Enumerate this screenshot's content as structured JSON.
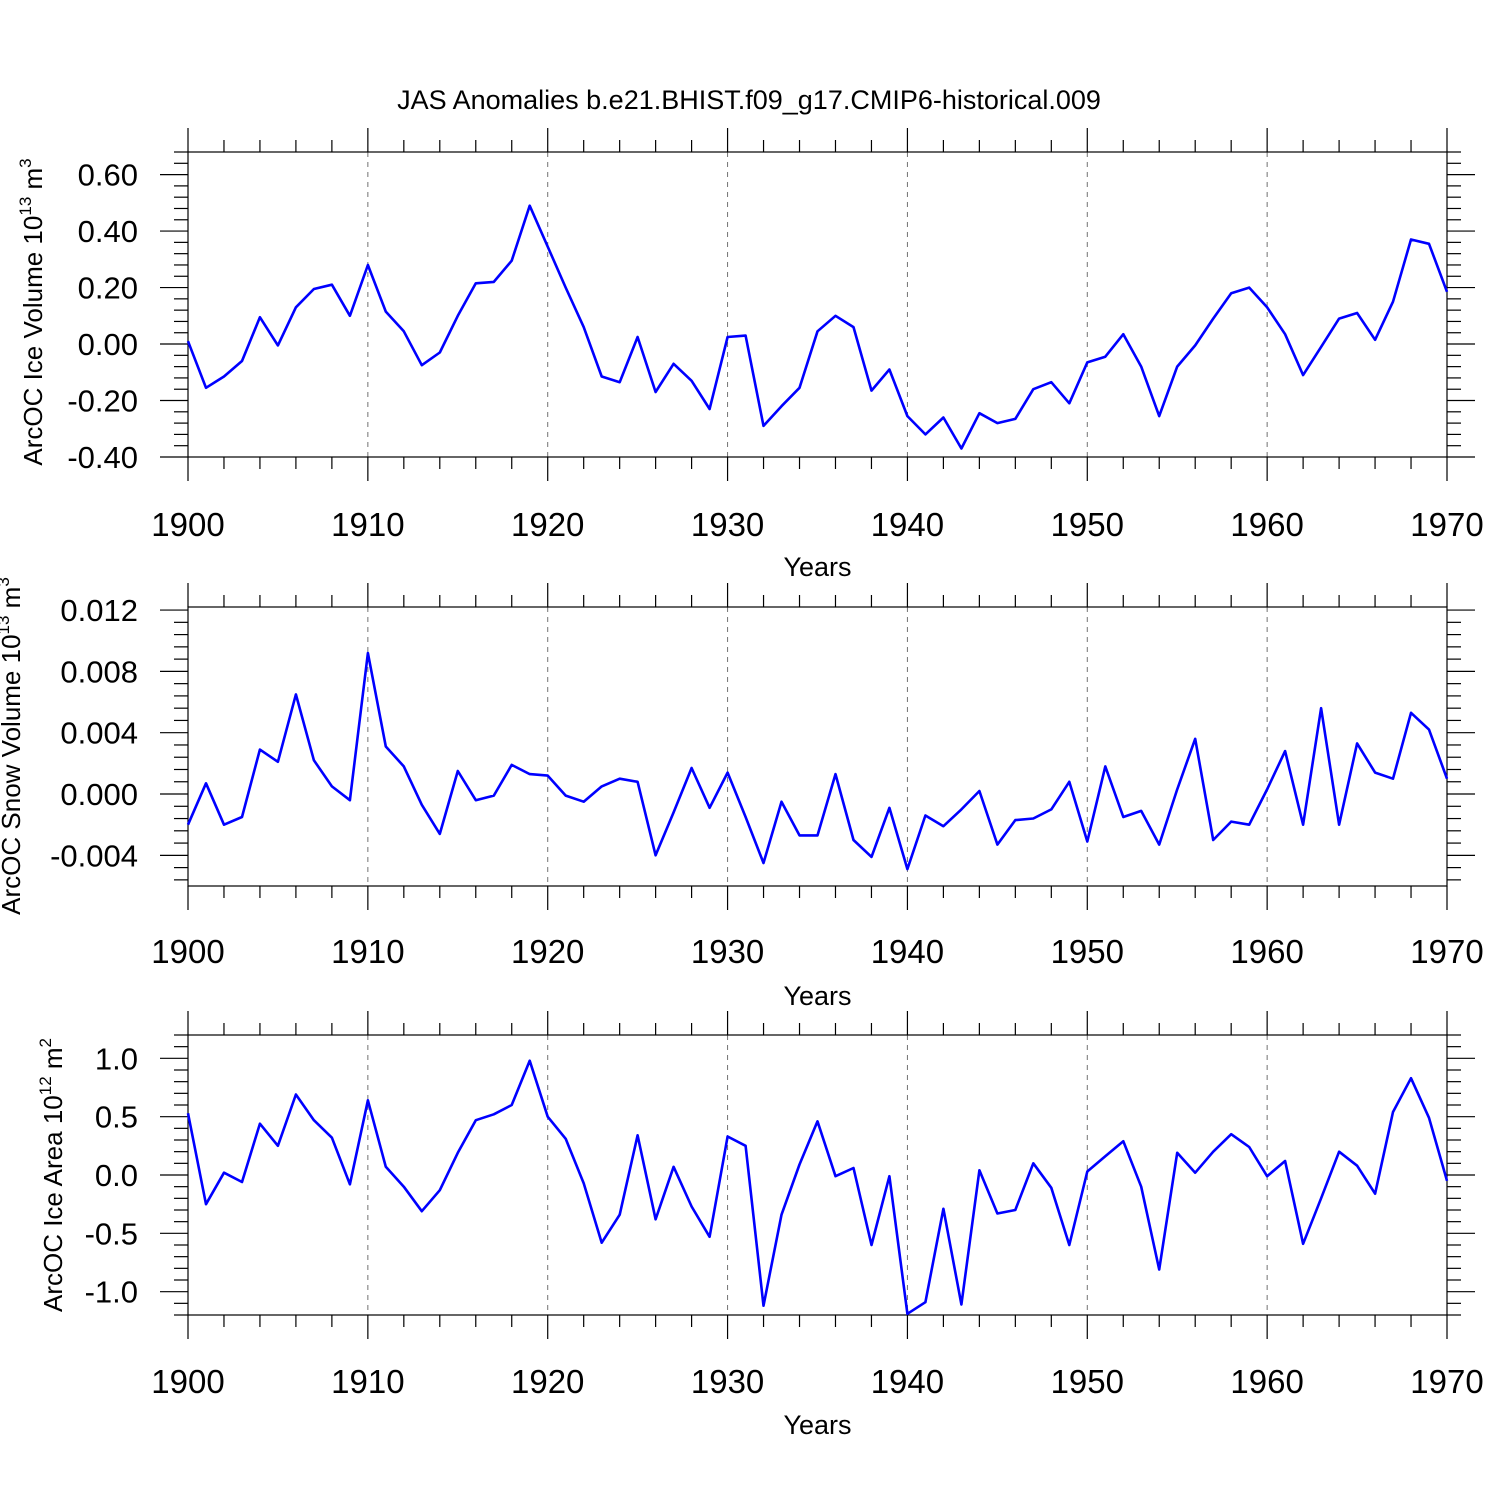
{
  "chart_data": [
    {
      "type": "line",
      "title": "JAS Anomalies b.e21.BHIST.f09_g17.CMIP6-historical.009",
      "ylabel": {
        "main": "ArcOC Ice Volume 10",
        "exp": "13",
        "mid": " m",
        "unit_exp": "3"
      },
      "xlabel": "Years",
      "xlim": [
        1900,
        1970
      ],
      "ylim": [
        -0.4,
        0.68
      ],
      "yticks": [
        -0.4,
        -0.2,
        0.0,
        0.2,
        0.4,
        0.6
      ],
      "ytick_labels": [
        "-0.40",
        "-0.20",
        "0.00",
        "0.20",
        "0.40",
        "0.60"
      ],
      "xticks": [
        1900,
        1910,
        1920,
        1930,
        1940,
        1950,
        1960,
        1970
      ],
      "xtick_labels": [
        "1900",
        "1910",
        "1920",
        "1930",
        "1940",
        "1950",
        "1960",
        "1970"
      ],
      "grid": "dashed vertical at decades",
      "color": "#0000ff",
      "x_start": 1900,
      "values": [
        0.01,
        -0.155,
        -0.115,
        -0.06,
        0.095,
        -0.005,
        0.13,
        0.195,
        0.21,
        0.1,
        0.28,
        0.115,
        0.045,
        -0.075,
        -0.03,
        0.1,
        0.215,
        0.22,
        0.295,
        0.49,
        0.345,
        0.2,
        0.06,
        -0.115,
        -0.135,
        0.025,
        -0.17,
        -0.07,
        -0.13,
        -0.23,
        0.025,
        0.03,
        -0.29,
        -0.22,
        -0.155,
        0.045,
        0.1,
        0.06,
        -0.165,
        -0.09,
        -0.255,
        -0.32,
        -0.26,
        -0.37,
        -0.245,
        -0.28,
        -0.265,
        -0.16,
        -0.135,
        -0.21,
        -0.065,
        -0.045,
        0.035,
        -0.08,
        -0.255,
        -0.08,
        -0.005,
        0.09,
        0.18,
        0.2,
        0.13,
        0.035,
        -0.11,
        -0.01,
        0.09,
        0.11,
        0.015,
        0.15,
        0.37,
        0.355,
        0.185
      ]
    },
    {
      "type": "line",
      "title": "",
      "ylabel": {
        "main": "ArcOC Snow Volume 10",
        "exp": "13",
        "mid": " m",
        "unit_exp": "3"
      },
      "xlabel": "Years",
      "xlim": [
        1900,
        1970
      ],
      "ylim": [
        -0.006,
        0.0122
      ],
      "yticks": [
        -0.004,
        0.0,
        0.004,
        0.008,
        0.012
      ],
      "ytick_labels": [
        "-0.004",
        "0.000",
        "0.004",
        "0.008",
        "0.012"
      ],
      "xticks": [
        1900,
        1910,
        1920,
        1930,
        1940,
        1950,
        1960,
        1970
      ],
      "xtick_labels": [
        "1900",
        "1910",
        "1920",
        "1930",
        "1940",
        "1950",
        "1960",
        "1970"
      ],
      "grid": "dashed vertical at decades",
      "color": "#0000ff",
      "x_start": 1900,
      "values": [
        -0.002,
        0.0007,
        -0.002,
        -0.0015,
        0.0029,
        0.0021,
        0.0065,
        0.0022,
        0.0005,
        -0.0004,
        0.0092,
        0.0031,
        0.0018,
        -0.0007,
        -0.0026,
        0.0015,
        -0.0004,
        -0.0001,
        0.0019,
        0.0013,
        0.0012,
        -0.0001,
        -0.0005,
        0.0005,
        0.001,
        0.0008,
        -0.004,
        -0.0012,
        0.0017,
        -0.0009,
        0.0014,
        -0.0015,
        -0.0045,
        -0.0005,
        -0.0027,
        -0.0027,
        0.0013,
        -0.003,
        -0.0041,
        -0.0009,
        -0.0049,
        -0.0014,
        -0.0021,
        -0.001,
        0.0002,
        -0.0033,
        -0.0017,
        -0.0016,
        -0.001,
        0.0008,
        -0.0031,
        0.0018,
        -0.0015,
        -0.0011,
        -0.0033,
        0.0003,
        0.0036,
        -0.003,
        -0.0018,
        -0.002,
        0.0003,
        0.0028,
        -0.002,
        0.0056,
        -0.002,
        0.0033,
        0.0014,
        0.001,
        0.0053,
        0.0042,
        0.001
      ]
    },
    {
      "type": "line",
      "title": "",
      "ylabel": {
        "main": "ArcOC Ice Area 10",
        "exp": "12",
        "mid": " m",
        "unit_exp": "2"
      },
      "xlabel": "Years",
      "xlim": [
        1900,
        1970
      ],
      "ylim": [
        -1.2,
        1.2
      ],
      "yticks": [
        -1.0,
        -0.5,
        0.0,
        0.5,
        1.0
      ],
      "ytick_labels": [
        "-1.0",
        "-0.5",
        "0.0",
        "0.5",
        "1.0"
      ],
      "xticks": [
        1900,
        1910,
        1920,
        1930,
        1940,
        1950,
        1960,
        1970
      ],
      "xtick_labels": [
        "1900",
        "1910",
        "1920",
        "1930",
        "1940",
        "1950",
        "1960",
        "1970"
      ],
      "grid": "dashed vertical at decades",
      "color": "#0000ff",
      "x_start": 1900,
      "values": [
        0.53,
        -0.25,
        0.02,
        -0.06,
        0.44,
        0.25,
        0.69,
        0.47,
        0.32,
        -0.08,
        0.64,
        0.07,
        -0.1,
        -0.31,
        -0.13,
        0.19,
        0.47,
        0.52,
        0.6,
        0.98,
        0.5,
        0.31,
        -0.07,
        -0.58,
        -0.34,
        0.34,
        -0.38,
        0.07,
        -0.27,
        -0.53,
        0.33,
        0.25,
        -1.12,
        -0.34,
        0.09,
        0.46,
        -0.01,
        0.06,
        -0.6,
        -0.01,
        -1.19,
        -1.09,
        -0.29,
        -1.11,
        0.04,
        -0.33,
        -0.3,
        0.1,
        -0.11,
        -0.6,
        0.03,
        0.16,
        0.29,
        -0.1,
        -0.81,
        0.19,
        0.02,
        0.2,
        0.35,
        0.24,
        -0.01,
        0.12,
        -0.59,
        -0.2,
        0.2,
        0.08,
        -0.16,
        0.54,
        0.83,
        0.49,
        -0.05
      ]
    }
  ]
}
